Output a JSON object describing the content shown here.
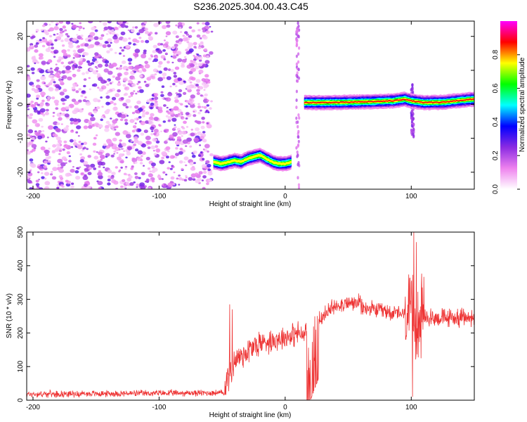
{
  "chart_data": [
    {
      "type": "heatmap",
      "title": "S236.2025.304.00.43.C45",
      "xlabel": "Height of straight line (km)",
      "ylabel": "Frequency (Hz)",
      "xlim": [
        -205,
        150
      ],
      "ylim": [
        -25,
        24.5
      ],
      "xticks": [
        -200,
        -100,
        0,
        100
      ],
      "yticks": [
        -20,
        -10,
        0,
        10,
        20
      ],
      "grid": false,
      "colorbar": {
        "label": "Normalized spectral amplitude",
        "range": [
          0,
          1
        ],
        "ticks": [
          0.0,
          0.2,
          0.4,
          0.6,
          0.8
        ],
        "tick_labels": [
          "0.0",
          "0.2",
          "0.4",
          "0.6",
          "0.8"
        ],
        "colors": [
          "#ffffff",
          "#ee82ee",
          "#8a2be2",
          "#0000ff",
          "#00ffff",
          "#00ff00",
          "#ffff00",
          "#ff0000",
          "#ff00ff"
        ]
      },
      "noise_region": {
        "x": [
          -205,
          -58
        ],
        "y": [
          -25,
          24.5
        ],
        "level": [
          0.05,
          0.3
        ]
      },
      "ridges": [
        {
          "x": [
            -57,
            -50,
            -45,
            -40,
            -35,
            -30,
            -25,
            -20,
            -15,
            -10,
            -5,
            0,
            5
          ],
          "y": [
            -17,
            -17.5,
            -17,
            -16.5,
            -17,
            -16,
            -15.5,
            -15,
            -16,
            -17,
            -17.5,
            -17.5,
            -17
          ],
          "peak": 0.75
        },
        {
          "x": [
            15,
            30,
            50,
            70,
            85,
            95,
            100,
            110,
            125,
            140,
            150
          ],
          "y": [
            0.5,
            0.5,
            0.6,
            0.8,
            1,
            1.5,
            1,
            0.5,
            0.6,
            1.2,
            1.5
          ],
          "peak": 0.85
        }
      ]
    },
    {
      "type": "line",
      "title": "",
      "xlabel": "Height of straight line (km)",
      "ylabel": "SNR (10 * v/v)",
      "xlim": [
        -205,
        150
      ],
      "ylim": [
        0,
        500
      ],
      "xticks": [
        -200,
        -100,
        0,
        100
      ],
      "yticks": [
        0,
        100,
        200,
        300,
        400,
        500
      ],
      "grid": false,
      "series": [
        {
          "color": "#ee3333",
          "sampling": {
            "x_start": -205,
            "x_end": 150,
            "step": 0.25
          },
          "segments": [
            {
              "x": [
                -205,
                -48
              ],
              "base": [
                18,
                22
              ],
              "noise": 12
            },
            {
              "x": [
                -48,
                -40
              ],
              "base": [
                40,
                120
              ],
              "noise": 60
            },
            {
              "x": [
                -40,
                -20
              ],
              "base": [
                120,
                170
              ],
              "noise": 55
            },
            {
              "x": [
                -20,
                12
              ],
              "base": [
                170,
                200
              ],
              "noise": 45
            },
            {
              "x": [
                12,
                17
              ],
              "base": [
                190,
                200
              ],
              "noise": 40
            },
            {
              "x": [
                17,
                27
              ],
              "base": [
                100,
                200
              ],
              "noise": 130
            },
            {
              "x": [
                27,
                40
              ],
              "base": [
                240,
                280
              ],
              "noise": 35
            },
            {
              "x": [
                40,
                60
              ],
              "base": [
                285,
                290
              ],
              "noise": 30
            },
            {
              "x": [
                60,
                95
              ],
              "base": [
                275,
                255
              ],
              "noise": 30
            },
            {
              "x": [
                95,
                110
              ],
              "base": [
                250,
                240
              ],
              "noise": 150
            },
            {
              "x": [
                110,
                150
              ],
              "base": [
                245,
                245
              ],
              "noise": 35
            }
          ],
          "peaks": [
            {
              "x": -44,
              "y": 285
            },
            {
              "x": -42,
              "y": 270
            },
            {
              "x": 102,
              "y": 500
            },
            {
              "x": 104,
              "y": 470
            },
            {
              "x": 101,
              "y": 10
            }
          ]
        }
      ]
    }
  ]
}
